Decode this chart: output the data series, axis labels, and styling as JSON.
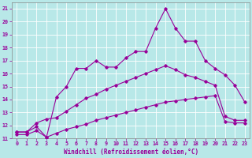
{
  "xlabel": "Windchill (Refroidissement éolien,°C)",
  "background_color": "#b8e8e8",
  "grid_color": "#aad4d4",
  "line_color": "#990099",
  "xlim": [
    -0.5,
    23.5
  ],
  "ylim": [
    11,
    21.5
  ],
  "xticks": [
    0,
    1,
    2,
    3,
    4,
    5,
    6,
    7,
    8,
    9,
    10,
    11,
    12,
    13,
    14,
    15,
    16,
    17,
    18,
    19,
    20,
    21,
    22,
    23
  ],
  "yticks": [
    11,
    12,
    13,
    14,
    15,
    16,
    17,
    18,
    19,
    20,
    21
  ],
  "line1_x": [
    0,
    1,
    2,
    3,
    4,
    5,
    6,
    7,
    8,
    9,
    10,
    11,
    12,
    13,
    14,
    15,
    16,
    17,
    18,
    19,
    20,
    21,
    22,
    23
  ],
  "line1_y": [
    11.5,
    11.5,
    11.9,
    11.1,
    14.2,
    15.0,
    16.4,
    16.4,
    17.0,
    16.5,
    16.5,
    17.2,
    17.7,
    17.7,
    19.5,
    21.0,
    19.5,
    18.5,
    18.5,
    17.0,
    16.4,
    15.9,
    15.1,
    13.8
  ],
  "line2_x": [
    0,
    1,
    2,
    3,
    4,
    5,
    6,
    7,
    8,
    9,
    10,
    11,
    12,
    13,
    14,
    15,
    16,
    17,
    18,
    19,
    20,
    21,
    22,
    23
  ],
  "line2_y": [
    11.5,
    11.5,
    12.2,
    12.5,
    12.6,
    13.1,
    13.6,
    14.1,
    14.4,
    14.8,
    15.1,
    15.4,
    15.7,
    16.0,
    16.3,
    16.6,
    16.3,
    15.9,
    15.7,
    15.4,
    15.1,
    12.7,
    12.4,
    12.4
  ],
  "line3_x": [
    0,
    1,
    2,
    3,
    4,
    5,
    6,
    7,
    8,
    9,
    10,
    11,
    12,
    13,
    14,
    15,
    16,
    17,
    18,
    19,
    20,
    21,
    22,
    23
  ],
  "line3_y": [
    11.3,
    11.3,
    11.6,
    11.1,
    11.4,
    11.7,
    11.9,
    12.1,
    12.4,
    12.6,
    12.8,
    13.0,
    13.2,
    13.4,
    13.6,
    13.8,
    13.9,
    14.0,
    14.1,
    14.2,
    14.3,
    12.3,
    12.2,
    12.2
  ]
}
